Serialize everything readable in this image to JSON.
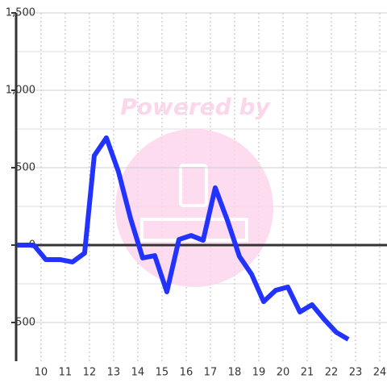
{
  "chart_data": {
    "type": "line",
    "watermark": "Powered by",
    "x": [
      9.0,
      9.7,
      10.2,
      10.8,
      11.3,
      11.8,
      12.2,
      12.7,
      13.2,
      13.7,
      14.2,
      14.7,
      15.2,
      15.7,
      16.2,
      16.7,
      17.2,
      17.7,
      18.2,
      18.7,
      19.2,
      19.7,
      20.2,
      20.7,
      21.2,
      21.7,
      22.2,
      22.7
    ],
    "series": [
      {
        "color": "#2233ff",
        "values": [
          0,
          0,
          -94,
          -94,
          -109,
          -52,
          578,
          693,
          474,
          172,
          -83,
          -68,
          -302,
          36,
          62,
          31,
          370,
          161,
          -73,
          -188,
          -365,
          -292,
          -271,
          -432,
          -385,
          -479,
          -563,
          -609
        ]
      }
    ],
    "xlim": [
      8.97,
      24.3
    ],
    "xticks": [
      10,
      11,
      12,
      13,
      14,
      15,
      16,
      17,
      18,
      19,
      20,
      21,
      22,
      23,
      24
    ],
    "ylim": [
      -750,
      1500
    ],
    "yticks": [
      {
        "value": 1500,
        "label": "1,500"
      },
      {
        "value": 1000,
        "label": "1,000"
      },
      500,
      0,
      -500
    ],
    "minor_yticks": [
      1250,
      750,
      250,
      -250
    ],
    "grid": true
  }
}
